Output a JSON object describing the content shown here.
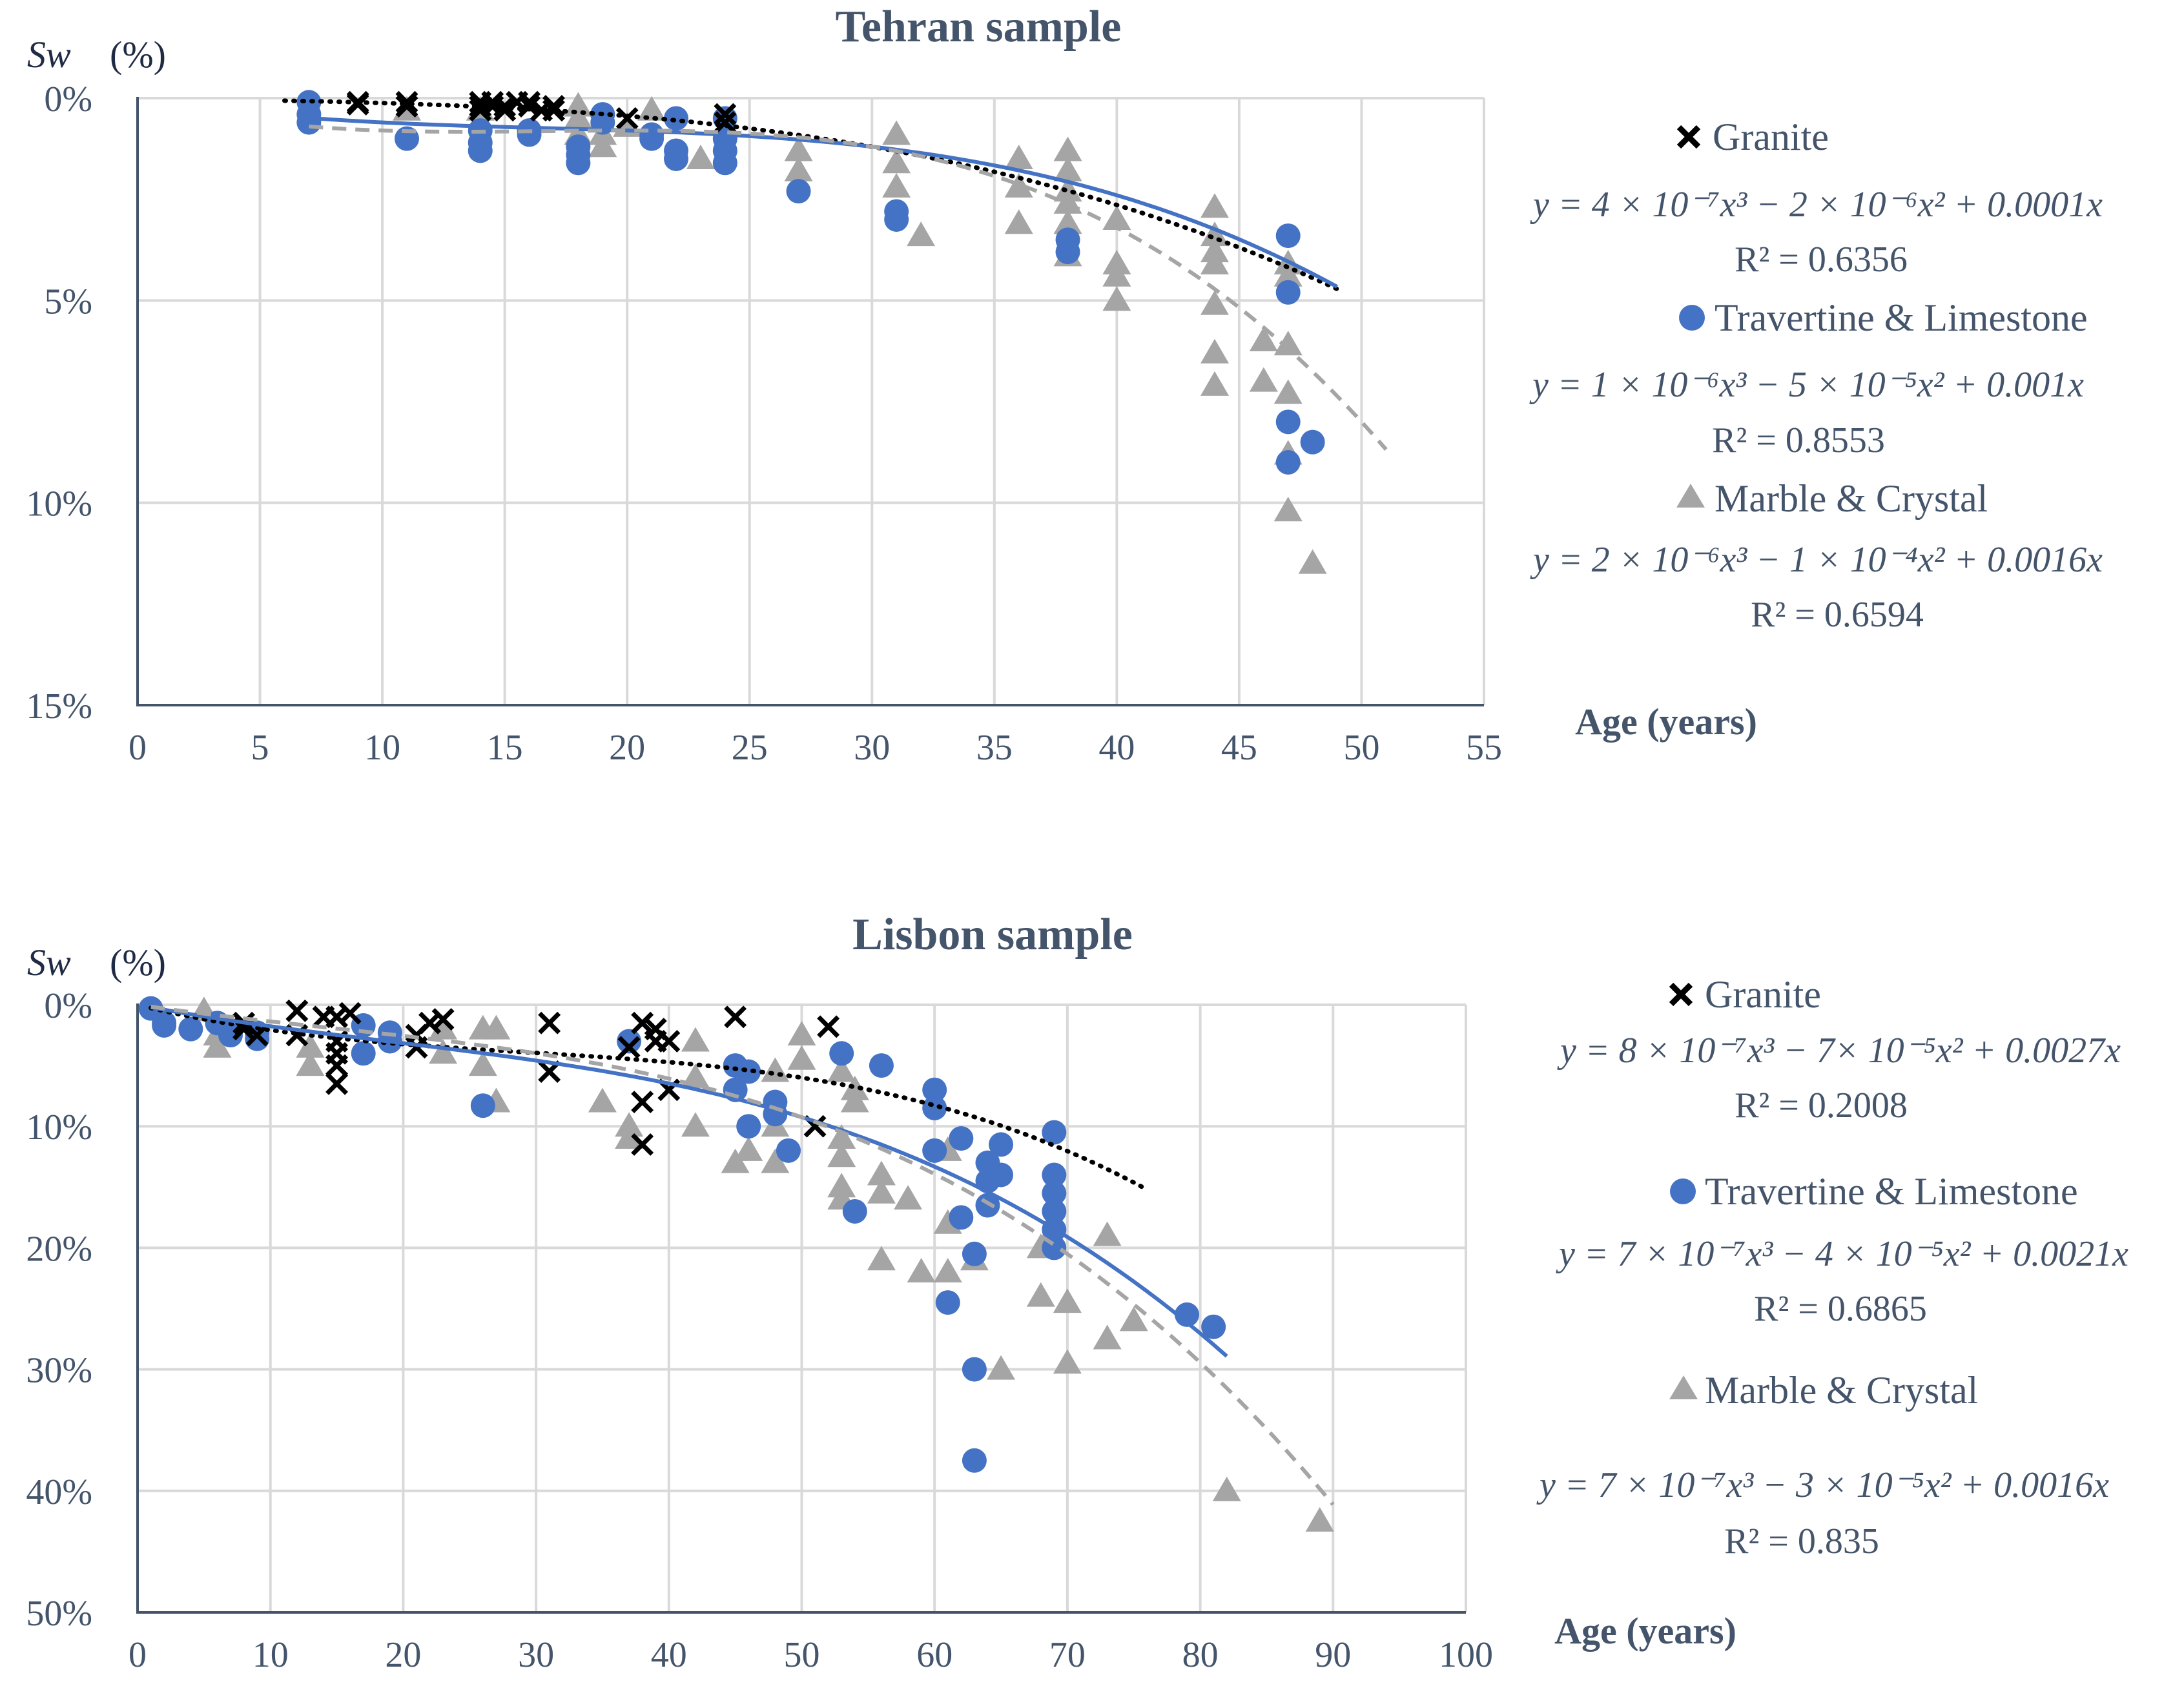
{
  "colors": {
    "granite": "#000000",
    "travertine": "#4472c4",
    "marble": "#a5a5a5",
    "grid": "#d9d9d9",
    "axis": "#44546a"
  },
  "chart_data": [
    {
      "type": "scatter",
      "title": "Tehran sample",
      "ylabel_var": "Sw",
      "ylabel_unit": "(%)",
      "xlabel": "Age (years)",
      "xlim": [
        0,
        55
      ],
      "ylim": [
        0,
        15
      ],
      "y_inverted": true,
      "x_ticks": [
        "0",
        "5",
        "10",
        "15",
        "20",
        "25",
        "30",
        "35",
        "40",
        "45",
        "50",
        "55"
      ],
      "y_ticks": [
        "0%",
        "5%",
        "10%",
        "15%"
      ],
      "grid": true,
      "legend_position": "right",
      "series": [
        {
          "name": "Granite",
          "marker": "x",
          "legend_marker": "granite-cross-icon",
          "equation": "y = 4 × 10⁻⁷x³ − 2 × 10⁻⁶x² + 0.0001x",
          "r2": "R² = 0.6356",
          "trend": {
            "coef": [
              4e-07,
              -2e-06,
              0.0001
            ],
            "x_range": [
              6,
              49
            ],
            "style": "dotted"
          },
          "points": [
            [
              9,
              0.1
            ],
            [
              9,
              0.15
            ],
            [
              11,
              0.1
            ],
            [
              11,
              0.2
            ],
            [
              14,
              0.1
            ],
            [
              14,
              0.2
            ],
            [
              14,
              0.3
            ],
            [
              14.5,
              0.1
            ],
            [
              14.5,
              0.2
            ],
            [
              15,
              0.2
            ],
            [
              15,
              0.3
            ],
            [
              15.5,
              0.1
            ],
            [
              16,
              0.1
            ],
            [
              16,
              0.2
            ],
            [
              16.5,
              0.3
            ],
            [
              17,
              0.2
            ],
            [
              17,
              0.3
            ],
            [
              20,
              0.5
            ],
            [
              24,
              0.4
            ],
            [
              24,
              0.6
            ]
          ]
        },
        {
          "name": "Travertine & Limestone",
          "marker": "circle",
          "legend_marker": "travertine-dot-icon",
          "equation": "y = 1 × 10⁻⁶x³ − 5 × 10⁻⁵x² + 0.001x",
          "r2": "R² = 0.8553",
          "trend": {
            "coef": [
              1e-06,
              -5e-05,
              0.001
            ],
            "x_range": [
              7,
              49
            ],
            "style": "solid"
          },
          "points": [
            [
              7,
              0.1
            ],
            [
              7,
              0.4
            ],
            [
              7,
              0.6
            ],
            [
              11,
              1.0
            ],
            [
              14,
              0.8
            ],
            [
              14,
              1.1
            ],
            [
              14,
              1.3
            ],
            [
              16,
              0.8
            ],
            [
              16,
              0.9
            ],
            [
              18,
              1.2
            ],
            [
              18,
              1.4
            ],
            [
              18,
              1.6
            ],
            [
              19,
              0.4
            ],
            [
              19,
              0.6
            ],
            [
              21,
              0.9
            ],
            [
              21,
              1.0
            ],
            [
              22,
              0.5
            ],
            [
              22,
              1.3
            ],
            [
              22,
              1.5
            ],
            [
              24,
              0.5
            ],
            [
              24,
              1.0
            ],
            [
              24,
              1.3
            ],
            [
              24,
              1.6
            ],
            [
              27,
              2.3
            ],
            [
              31,
              2.8
            ],
            [
              31,
              3.0
            ],
            [
              38,
              3.5
            ],
            [
              38,
              3.8
            ],
            [
              47,
              3.4
            ],
            [
              47,
              4.8
            ],
            [
              47,
              8.0
            ],
            [
              47,
              9.0
            ],
            [
              48,
              8.5
            ]
          ]
        },
        {
          "name": "Marble & Crystal",
          "marker": "triangle",
          "legend_marker": "marble-triangle-icon",
          "equation": "y = 2 × 10⁻⁶x³ − 1 × 10⁻⁴x² + 0.0016x",
          "r2": "R² = 0.6594",
          "trend": {
            "coef": [
              2e-06,
              -0.0001,
              0.0016
            ],
            "x_range": [
              7,
              51
            ],
            "style": "dashed"
          },
          "points": [
            [
              11,
              0.3
            ],
            [
              14,
              0.3
            ],
            [
              18,
              0.2
            ],
            [
              18,
              0.5
            ],
            [
              18,
              0.9
            ],
            [
              19,
              0.9
            ],
            [
              19,
              1.2
            ],
            [
              20,
              0.7
            ],
            [
              21,
              0.3
            ],
            [
              23,
              1.5
            ],
            [
              27,
              1.3
            ],
            [
              27,
              1.8
            ],
            [
              31,
              0.9
            ],
            [
              31,
              1.6
            ],
            [
              31,
              2.2
            ],
            [
              32,
              3.4
            ],
            [
              36,
              1.5
            ],
            [
              36,
              2.2
            ],
            [
              36,
              3.1
            ],
            [
              38,
              1.3
            ],
            [
              38,
              1.8
            ],
            [
              38,
              2.3
            ],
            [
              38,
              2.6
            ],
            [
              38,
              3.1
            ],
            [
              38,
              3.9
            ],
            [
              40,
              3.0
            ],
            [
              40,
              4.1
            ],
            [
              40,
              4.4
            ],
            [
              40,
              5.0
            ],
            [
              44,
              2.7
            ],
            [
              44,
              3.4
            ],
            [
              44,
              3.8
            ],
            [
              44,
              4.1
            ],
            [
              44,
              5.1
            ],
            [
              44,
              6.3
            ],
            [
              44,
              7.1
            ],
            [
              46,
              6.0
            ],
            [
              46,
              7.0
            ],
            [
              47,
              4.1
            ],
            [
              47,
              4.4
            ],
            [
              47,
              6.1
            ],
            [
              47,
              7.3
            ],
            [
              47,
              8.8
            ],
            [
              47,
              10.2
            ],
            [
              48,
              11.5
            ]
          ]
        }
      ]
    },
    {
      "type": "scatter",
      "title": "Lisbon sample",
      "ylabel_var": "Sw",
      "ylabel_unit": "(%)",
      "xlabel": "Age (years)",
      "xlim": [
        0,
        100
      ],
      "ylim": [
        0,
        50
      ],
      "y_inverted": true,
      "x_ticks": [
        "0",
        "10",
        "20",
        "30",
        "40",
        "50",
        "60",
        "70",
        "80",
        "90",
        "100"
      ],
      "y_ticks": [
        "0%",
        "10%",
        "20%",
        "30%",
        "40%",
        "50%"
      ],
      "grid": true,
      "legend_position": "right",
      "series": [
        {
          "name": "Granite",
          "marker": "x",
          "legend_marker": "granite-cross-icon",
          "equation": "y = 8 × 10⁻⁷x³ − 7× 10⁻⁵x² + 0.0027x",
          "r2": "R² = 0.2008",
          "trend": {
            "coef": [
              8e-07,
              -7e-05,
              0.0027
            ],
            "x_range": [
              1,
              76
            ],
            "style": "dotted"
          },
          "points": [
            [
              8,
              1.5
            ],
            [
              8,
              2.0
            ],
            [
              9,
              2.5
            ],
            [
              12,
              0.5
            ],
            [
              12,
              2.5
            ],
            [
              14,
              1.0
            ],
            [
              15,
              1.0
            ],
            [
              15,
              3.0
            ],
            [
              15,
              4.0
            ],
            [
              15,
              5.0
            ],
            [
              15,
              6.5
            ],
            [
              16,
              0.7
            ],
            [
              21,
              2.5
            ],
            [
              21,
              3.5
            ],
            [
              22,
              1.5
            ],
            [
              23,
              1.2
            ],
            [
              31,
              1.5
            ],
            [
              31,
              5.5
            ],
            [
              37,
              3.5
            ],
            [
              38,
              1.5
            ],
            [
              38,
              8.0
            ],
            [
              38,
              11.5
            ],
            [
              39,
              2.0
            ],
            [
              39,
              3.0
            ],
            [
              40,
              3.0
            ],
            [
              40,
              7.0
            ],
            [
              45,
              1.0
            ],
            [
              51,
              10.0
            ],
            [
              52,
              1.8
            ]
          ]
        },
        {
          "name": "Travertine & Limestone",
          "marker": "circle",
          "legend_marker": "travertine-dot-icon",
          "equation": "y = 7 × 10⁻⁷x³ − 4 × 10⁻⁵x² + 0.0021x",
          "r2": "R² = 0.6865",
          "trend": {
            "coef": [
              7e-07,
              -4e-05,
              0.0021
            ],
            "x_range": [
              1,
              82
            ],
            "style": "solid"
          },
          "points": [
            [
              1,
              0.3
            ],
            [
              2,
              1.5
            ],
            [
              2,
              1.7
            ],
            [
              4,
              2.0
            ],
            [
              6,
              1.5
            ],
            [
              7,
              2.5
            ],
            [
              9,
              2.3
            ],
            [
              9,
              2.8
            ],
            [
              17,
              4.0
            ],
            [
              17,
              1.7
            ],
            [
              19,
              2.3
            ],
            [
              19,
              3.0
            ],
            [
              26,
              8.3
            ],
            [
              37,
              3.0
            ],
            [
              45,
              5.0
            ],
            [
              45,
              7.0
            ],
            [
              46,
              5.5
            ],
            [
              46,
              10.0
            ],
            [
              48,
              8.0
            ],
            [
              48,
              9.0
            ],
            [
              49,
              12.0
            ],
            [
              53,
              4.0
            ],
            [
              54,
              17.0
            ],
            [
              56,
              5.0
            ],
            [
              60,
              7.0
            ],
            [
              60,
              8.5
            ],
            [
              60,
              12.0
            ],
            [
              62,
              11.0
            ],
            [
              62,
              17.5
            ],
            [
              61,
              24.5
            ],
            [
              63,
              30.0
            ],
            [
              63,
              20.5
            ],
            [
              63,
              37.5
            ],
            [
              64,
              13.0
            ],
            [
              64,
              14.5
            ],
            [
              64,
              16.5
            ],
            [
              65,
              11.5
            ],
            [
              65,
              14.0
            ],
            [
              69,
              10.5
            ],
            [
              69,
              14.0
            ],
            [
              69,
              15.5
            ],
            [
              69,
              17.0
            ],
            [
              69,
              18.5
            ],
            [
              69,
              20.0
            ],
            [
              79,
              25.5
            ],
            [
              81,
              26.5
            ]
          ]
        },
        {
          "name": "Marble & Crystal",
          "marker": "triangle",
          "legend_marker": "marble-triangle-icon",
          "equation": "y = 7 × 10⁻⁷x³ − 3 × 10⁻⁵x² + 0.0016x",
          "r2": "R² = 0.835",
          "trend": {
            "coef": [
              7e-07,
              -3e-05,
              0.0016
            ],
            "x_range": [
              1,
              90
            ],
            "style": "dashed"
          },
          "points": [
            [
              5,
              0.5
            ],
            [
              6,
              2.5
            ],
            [
              6,
              3.5
            ],
            [
              13,
              3.5
            ],
            [
              13,
              5.0
            ],
            [
              23,
              2.0
            ],
            [
              23,
              4.0
            ],
            [
              26,
              2.0
            ],
            [
              26,
              5.0
            ],
            [
              27,
              2.0
            ],
            [
              27,
              8.0
            ],
            [
              35,
              8.0
            ],
            [
              37,
              10.0
            ],
            [
              37,
              11.0
            ],
            [
              42,
              3.0
            ],
            [
              42,
              6.0
            ],
            [
              42,
              10.0
            ],
            [
              45,
              13.0
            ],
            [
              46,
              12.0
            ],
            [
              48,
              5.5
            ],
            [
              48,
              10.0
            ],
            [
              48,
              13.0
            ],
            [
              50,
              2.5
            ],
            [
              50,
              4.5
            ],
            [
              53,
              5.5
            ],
            [
              53,
              11.0
            ],
            [
              53,
              12.5
            ],
            [
              53,
              15.0
            ],
            [
              53,
              16.0
            ],
            [
              54,
              7.0
            ],
            [
              54,
              8.0
            ],
            [
              56,
              14.0
            ],
            [
              56,
              15.5
            ],
            [
              56,
              21.0
            ],
            [
              58,
              16.0
            ],
            [
              59,
              22.0
            ],
            [
              61,
              12.0
            ],
            [
              61,
              18.0
            ],
            [
              61,
              22.0
            ],
            [
              63,
              21.0
            ],
            [
              65,
              30.0
            ],
            [
              68,
              20.0
            ],
            [
              68,
              24.0
            ],
            [
              70,
              24.5
            ],
            [
              70,
              29.5
            ],
            [
              73,
              19.0
            ],
            [
              73,
              27.5
            ],
            [
              75,
              26.0
            ],
            [
              82,
              40.0
            ],
            [
              89,
              42.5
            ]
          ]
        }
      ]
    }
  ]
}
